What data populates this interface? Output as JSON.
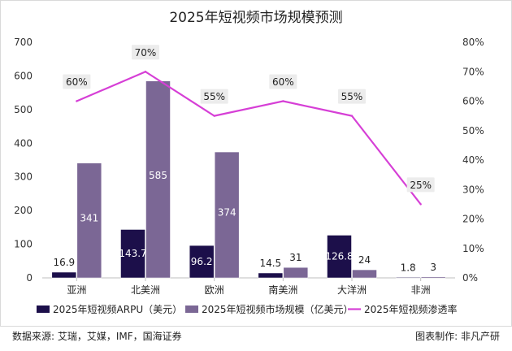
{
  "chart_data": {
    "type": "bar",
    "title": "2025年短视频市场规模预测",
    "categories": [
      "亚洲",
      "北美洲",
      "欧洲",
      "南美洲",
      "大洋洲",
      "非洲"
    ],
    "series": [
      {
        "name": "2025年短视频ARPU（美元）",
        "type": "bar",
        "axis": "left",
        "color": "#1c0f4a",
        "values": [
          16.9,
          143.7,
          96.2,
          14.5,
          126.8,
          1.8
        ],
        "labels": [
          "16.9",
          "143.7",
          "96.2",
          "14.5",
          "126.8",
          "1.8"
        ]
      },
      {
        "name": "2025年短视频市场规模（亿美元）",
        "type": "bar",
        "axis": "left",
        "color": "#7b6795",
        "values": [
          341,
          585,
          374,
          31,
          24,
          3
        ],
        "labels": [
          "341",
          "585",
          "374",
          "31",
          "24",
          "3"
        ]
      },
      {
        "name": "2025年短视频渗透率",
        "type": "line",
        "axis": "right",
        "color": "#d63fd6",
        "values": [
          60,
          70,
          55,
          60,
          55,
          25
        ],
        "labels": [
          "60%",
          "70%",
          "55%",
          "60%",
          "55%",
          "25%"
        ]
      }
    ],
    "y_left": {
      "min": 0,
      "max": 700,
      "step": 100,
      "ticks": [
        "0",
        "100",
        "200",
        "300",
        "400",
        "500",
        "600",
        "700"
      ]
    },
    "y_right": {
      "min": 0,
      "max": 80,
      "step": 10,
      "ticks": [
        "0%",
        "10%",
        "20%",
        "30%",
        "40%",
        "50%",
        "60%",
        "70%",
        "80%"
      ]
    },
    "grid": false,
    "legend_position": "bottom"
  },
  "footer": {
    "source": "数据来源: 艾瑞，艾媒，IMF，国海证券",
    "credit": "图表制作: 非凡产研"
  }
}
